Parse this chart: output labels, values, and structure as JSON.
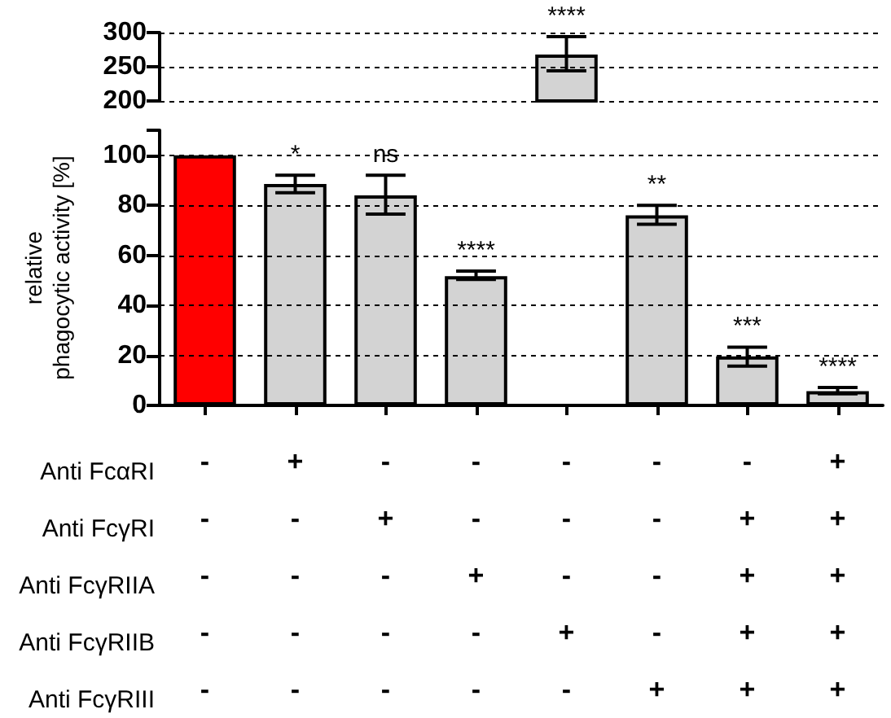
{
  "chart_data": [
    {
      "type": "bar",
      "categories": [
        null,
        null,
        null,
        null,
        null,
        null,
        null,
        null
      ],
      "values": [
        null,
        null,
        null,
        null,
        268,
        null,
        null,
        null
      ],
      "errors": [
        null,
        null,
        null,
        null,
        [
          244,
          294
        ],
        null,
        null,
        null
      ],
      "value_labels": [
        null,
        null,
        null,
        null,
        "****",
        null,
        null,
        null
      ],
      "colors": [
        "#ff0000",
        "#d3d3d3",
        "#d3d3d3",
        "#d3d3d3",
        "#d3d3d3",
        "#d3d3d3",
        "#d3d3d3",
        "#d3d3d3"
      ],
      "ylim": [
        200,
        300
      ],
      "yticks": [
        200,
        250,
        300
      ],
      "grid": "y",
      "tick_labels": "y"
    },
    {
      "type": "bar",
      "categories": [
        "-\n-\n-\n-\n-",
        "+\n-\n-\n-\n-",
        "-\n+\n-\n-\n-",
        "-\n-\n+\n-\n-",
        "-\n-\n-\n+\n-",
        "-\n-\n-\n-\n+",
        "-\n+\n+\n+\n+",
        "+\n+\n+\n+\n+"
      ],
      "values": [
        100,
        88.5,
        84,
        51.7,
        null,
        76,
        19.6,
        5.7
      ],
      "errors": [
        null,
        [
          85,
          92
        ],
        [
          76.5,
          92
        ],
        [
          50.4,
          53.7
        ],
        null,
        [
          72.4,
          80
        ],
        [
          15.7,
          23.3
        ],
        [
          4.6,
          7.2
        ]
      ],
      "value_labels": [
        null,
        "*",
        "ns",
        "****",
        null,
        "**",
        "***",
        "****"
      ],
      "colors": [
        "#ff0000",
        "#d3d3d3",
        "#d3d3d3",
        "#d3d3d3",
        "#d3d3d3",
        "#d3d3d3",
        "#d3d3d3",
        "#d3d3d3"
      ],
      "ylim": [
        0,
        110
      ],
      "yticks": [
        0,
        20,
        40,
        60,
        80,
        100
      ],
      "grid": "y",
      "ylabel": "relative\nphagocytic activity [%]",
      "annotations": [
        "Anti FcαRI",
        "Anti FcγRI",
        "Anti FcγRIIA",
        "Anti FcγRIIB",
        "Anti FcγRIII"
      ]
    }
  ]
}
